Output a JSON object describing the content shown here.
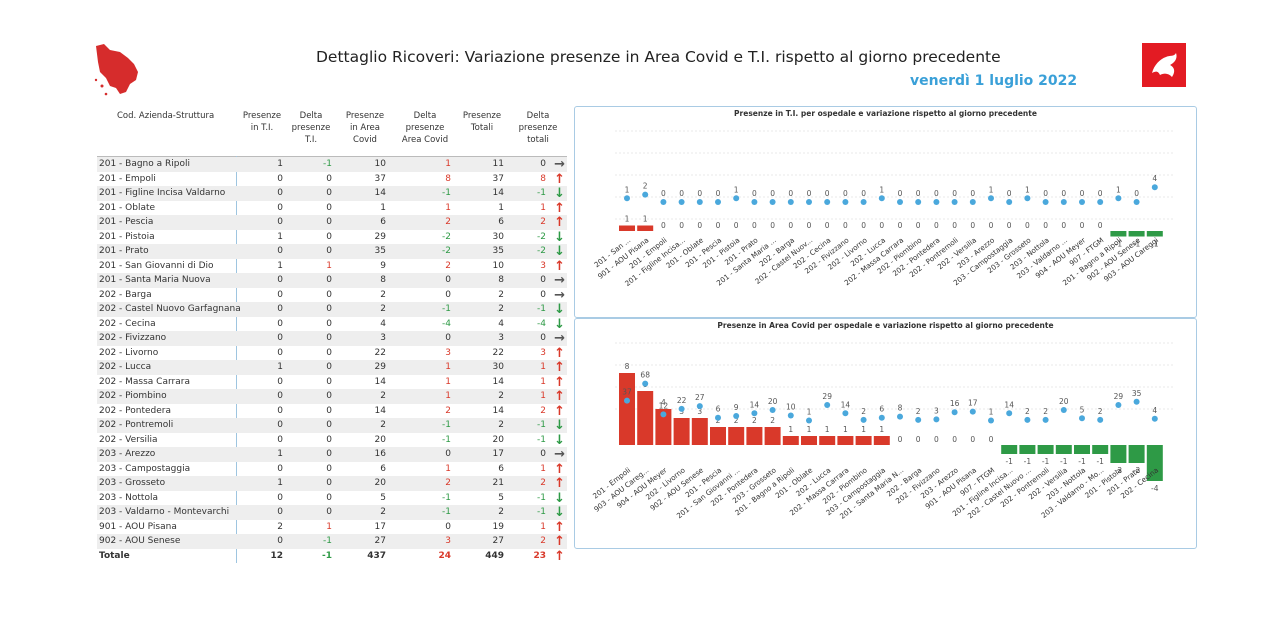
{
  "header": {
    "title": "Dettaglio Ricoveri: Variazione presenze in Area Covid e T.I. rispetto al giorno precedente",
    "date": "venerdì 1 luglio 2022"
  },
  "colors": {
    "accent": "#3aa0d8",
    "red": "#d9392a",
    "green": "#2e9a46",
    "dot": "#4aa8dc"
  },
  "table": {
    "headers": [
      "Cod. Azienda-Struttura",
      "Presenze\nin T.I.",
      "Delta\npresenze\nT.I.",
      "Presenze\nin Area\nCovid",
      "Delta\npresenze\nArea Covid",
      "Presenze\nTotali",
      "Delta\npresenze\ntotali"
    ],
    "rows": [
      [
        "201 - Bagno a Ripoli",
        "1",
        "-1",
        "10",
        "1",
        "11",
        "0",
        "right"
      ],
      [
        "201 - Empoli",
        "0",
        "0",
        "37",
        "8",
        "37",
        "8",
        "up"
      ],
      [
        "201 - Figline Incisa Valdarno",
        "0",
        "0",
        "14",
        "-1",
        "14",
        "-1",
        "down"
      ],
      [
        "201 - Oblate",
        "0",
        "0",
        "1",
        "1",
        "1",
        "1",
        "up"
      ],
      [
        "201 - Pescia",
        "0",
        "0",
        "6",
        "2",
        "6",
        "2",
        "up"
      ],
      [
        "201 - Pistoia",
        "1",
        "0",
        "29",
        "-2",
        "30",
        "-2",
        "down"
      ],
      [
        "201 - Prato",
        "0",
        "0",
        "35",
        "-2",
        "35",
        "-2",
        "down"
      ],
      [
        "201 - San Giovanni di Dio",
        "1",
        "1",
        "9",
        "2",
        "10",
        "3",
        "up"
      ],
      [
        "201 - Santa Maria Nuova",
        "0",
        "0",
        "8",
        "0",
        "8",
        "0",
        "right"
      ],
      [
        "202 - Barga",
        "0",
        "0",
        "2",
        "0",
        "2",
        "0",
        "right"
      ],
      [
        "202 - Castel Nuovo Garfagnana",
        "0",
        "0",
        "2",
        "-1",
        "2",
        "-1",
        "down"
      ],
      [
        "202 - Cecina",
        "0",
        "0",
        "4",
        "-4",
        "4",
        "-4",
        "down"
      ],
      [
        "202 - Fivizzano",
        "0",
        "0",
        "3",
        "0",
        "3",
        "0",
        "right"
      ],
      [
        "202 - Livorno",
        "0",
        "0",
        "22",
        "3",
        "22",
        "3",
        "up"
      ],
      [
        "202 - Lucca",
        "1",
        "0",
        "29",
        "1",
        "30",
        "1",
        "up"
      ],
      [
        "202 - Massa Carrara",
        "0",
        "0",
        "14",
        "1",
        "14",
        "1",
        "up"
      ],
      [
        "202 - Piombino",
        "0",
        "0",
        "2",
        "1",
        "2",
        "1",
        "up"
      ],
      [
        "202 - Pontedera",
        "0",
        "0",
        "14",
        "2",
        "14",
        "2",
        "up"
      ],
      [
        "202 - Pontremoli",
        "0",
        "0",
        "2",
        "-1",
        "2",
        "-1",
        "down"
      ],
      [
        "202 - Versilia",
        "0",
        "0",
        "20",
        "-1",
        "20",
        "-1",
        "down"
      ],
      [
        "203 - Arezzo",
        "1",
        "0",
        "16",
        "0",
        "17",
        "0",
        "right"
      ],
      [
        "203 - Campostaggia",
        "0",
        "0",
        "6",
        "1",
        "6",
        "1",
        "up"
      ],
      [
        "203 - Grosseto",
        "1",
        "0",
        "20",
        "2",
        "21",
        "2",
        "up"
      ],
      [
        "203 - Nottola",
        "0",
        "0",
        "5",
        "-1",
        "5",
        "-1",
        "down"
      ],
      [
        "203 - Valdarno - Montevarchi",
        "0",
        "0",
        "2",
        "-1",
        "2",
        "-1",
        "down"
      ],
      [
        "901 - AOU Pisana",
        "2",
        "1",
        "17",
        "0",
        "19",
        "1",
        "up"
      ],
      [
        "902 - AOU Senese",
        "0",
        "-1",
        "27",
        "3",
        "27",
        "2",
        "up"
      ]
    ],
    "total": [
      "Totale",
      "12",
      "-1",
      "437",
      "24",
      "449",
      "23",
      "up"
    ]
  },
  "chart_data": [
    {
      "type": "bar",
      "title": "Presenze in T.I. per ospedale e variazione rispetto al giorno precedente",
      "categories": [
        "201 - San ...",
        "901 - AOU Pisana",
        "201 - Empoli",
        "201 - Figline Incisa...",
        "201 - Oblate",
        "201 - Pescia",
        "201 - Pistoia",
        "201 - Prato",
        "201 - Santa Maria ...",
        "202 - Barga",
        "202 - Castel Nuov...",
        "202 - Cecina",
        "202 - Fivizzano",
        "202 - Livorno",
        "202 - Lucca",
        "202 - Massa Carrara",
        "202 - Piombino",
        "202 - Pontedera",
        "202 - Pontremoli",
        "202 - Versilia",
        "203 - Arezzo",
        "203 - Campostaggia",
        "203 - Grosseto",
        "203 - Nottola",
        "203 - Valdarno ...",
        "904 - AOU Meyer",
        "907 - FTGM",
        "201 - Bagno a Ripoli",
        "902 - AOU Senese",
        "903 - AOU Careggi"
      ],
      "series": [
        {
          "name": "Presenze",
          "kind": "dot",
          "values": [
            1,
            2,
            0,
            0,
            0,
            0,
            1,
            0,
            0,
            0,
            0,
            0,
            0,
            0,
            1,
            0,
            0,
            0,
            0,
            0,
            1,
            0,
            1,
            0,
            0,
            0,
            0,
            1,
            0,
            4
          ]
        },
        {
          "name": "Delta",
          "kind": "bar",
          "values": [
            1,
            1,
            0,
            0,
            0,
            0,
            0,
            0,
            0,
            0,
            0,
            0,
            0,
            0,
            0,
            0,
            0,
            0,
            0,
            0,
            0,
            0,
            0,
            0,
            0,
            0,
            0,
            -1,
            -1,
            -1
          ]
        }
      ]
    },
    {
      "type": "bar",
      "title": "Presenze in Area Covid per ospedale e variazione rispetto al giorno precedente",
      "categories": [
        "201 - Empoli",
        "903 - AOU Careg...",
        "904 - AOU Meyer",
        "202 - Livorno",
        "902 - AOU Senese",
        "201 - Pescia",
        "201 - San Giovanni ...",
        "202 - Pontedera",
        "203 - Grosseto",
        "201 - Bagno a Ripoli",
        "201 - Oblate",
        "202 - Lucca",
        "202 - Massa Carrara",
        "202 - Piombino",
        "203 - Campostaggia",
        "201 - Santa Maria N...",
        "202 - Barga",
        "202 - Fivizzano",
        "203 - Arezzo",
        "901 - AOU Pisana",
        "907 - FTGM",
        "201 - Figline Incisa...",
        "202 - Castel Nuovo ...",
        "202 - Pontremoli",
        "202 - Versilia",
        "203 - Nottola",
        "203 - Valdarno - Mo...",
        "201 - Pistoia",
        "201 - Prato",
        "202 - Cecina"
      ],
      "series": [
        {
          "name": "Presenze",
          "kind": "dot",
          "values": [
            37,
            68,
            12,
            22,
            27,
            6,
            9,
            14,
            20,
            10,
            1,
            29,
            14,
            2,
            6,
            8,
            2,
            3,
            16,
            17,
            1,
            14,
            2,
            2,
            20,
            5,
            2,
            29,
            35,
            4
          ]
        },
        {
          "name": "Delta",
          "kind": "bar",
          "values": [
            8,
            6,
            4,
            3,
            3,
            2,
            2,
            2,
            2,
            1,
            1,
            1,
            1,
            1,
            1,
            0,
            0,
            0,
            0,
            0,
            0,
            -1,
            -1,
            -1,
            -1,
            -1,
            -1,
            -2,
            -2,
            -4
          ]
        }
      ]
    }
  ]
}
